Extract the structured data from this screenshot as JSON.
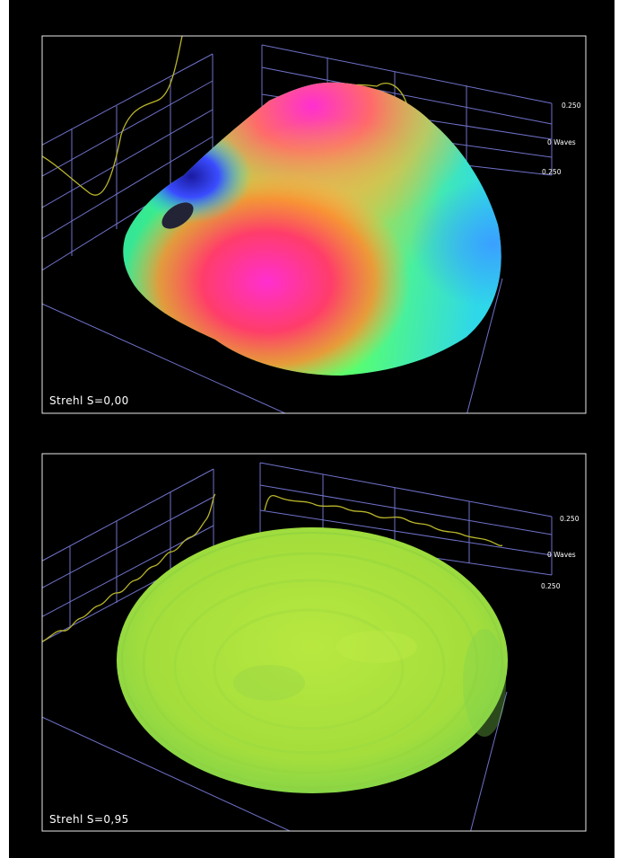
{
  "page": {
    "background": "#000000",
    "outer_margin_color": "#ffffff",
    "frame_color": "#e8e8e8",
    "grid_color": "#6f71c9",
    "profile_color": "#b9b52b"
  },
  "chart_data": [
    {
      "type": "surface",
      "title": "",
      "annotation": "Strehl S=0,00",
      "z_axis": {
        "unit_label": "0 Waves",
        "ticks": [
          "0.250",
          "0 Waves",
          "0.250"
        ]
      },
      "surface_colormap": [
        "#ff2fd0",
        "#ff3a5a",
        "#ff8a2a",
        "#e8d64a",
        "#4fff6a",
        "#2ee8e0",
        "#3a4cff"
      ],
      "notes": "aberrated wavefront, large peak-to-valley"
    },
    {
      "type": "surface",
      "title": "",
      "annotation": "Strehl S=0,95",
      "z_axis": {
        "unit_label": "0 Waves",
        "ticks": [
          "0.250",
          "0 Waves",
          "0.250"
        ]
      },
      "surface_colormap": [
        "#b4e63a",
        "#9fde3c",
        "#7ed84a"
      ],
      "notes": "corrected wavefront, nearly flat"
    }
  ]
}
